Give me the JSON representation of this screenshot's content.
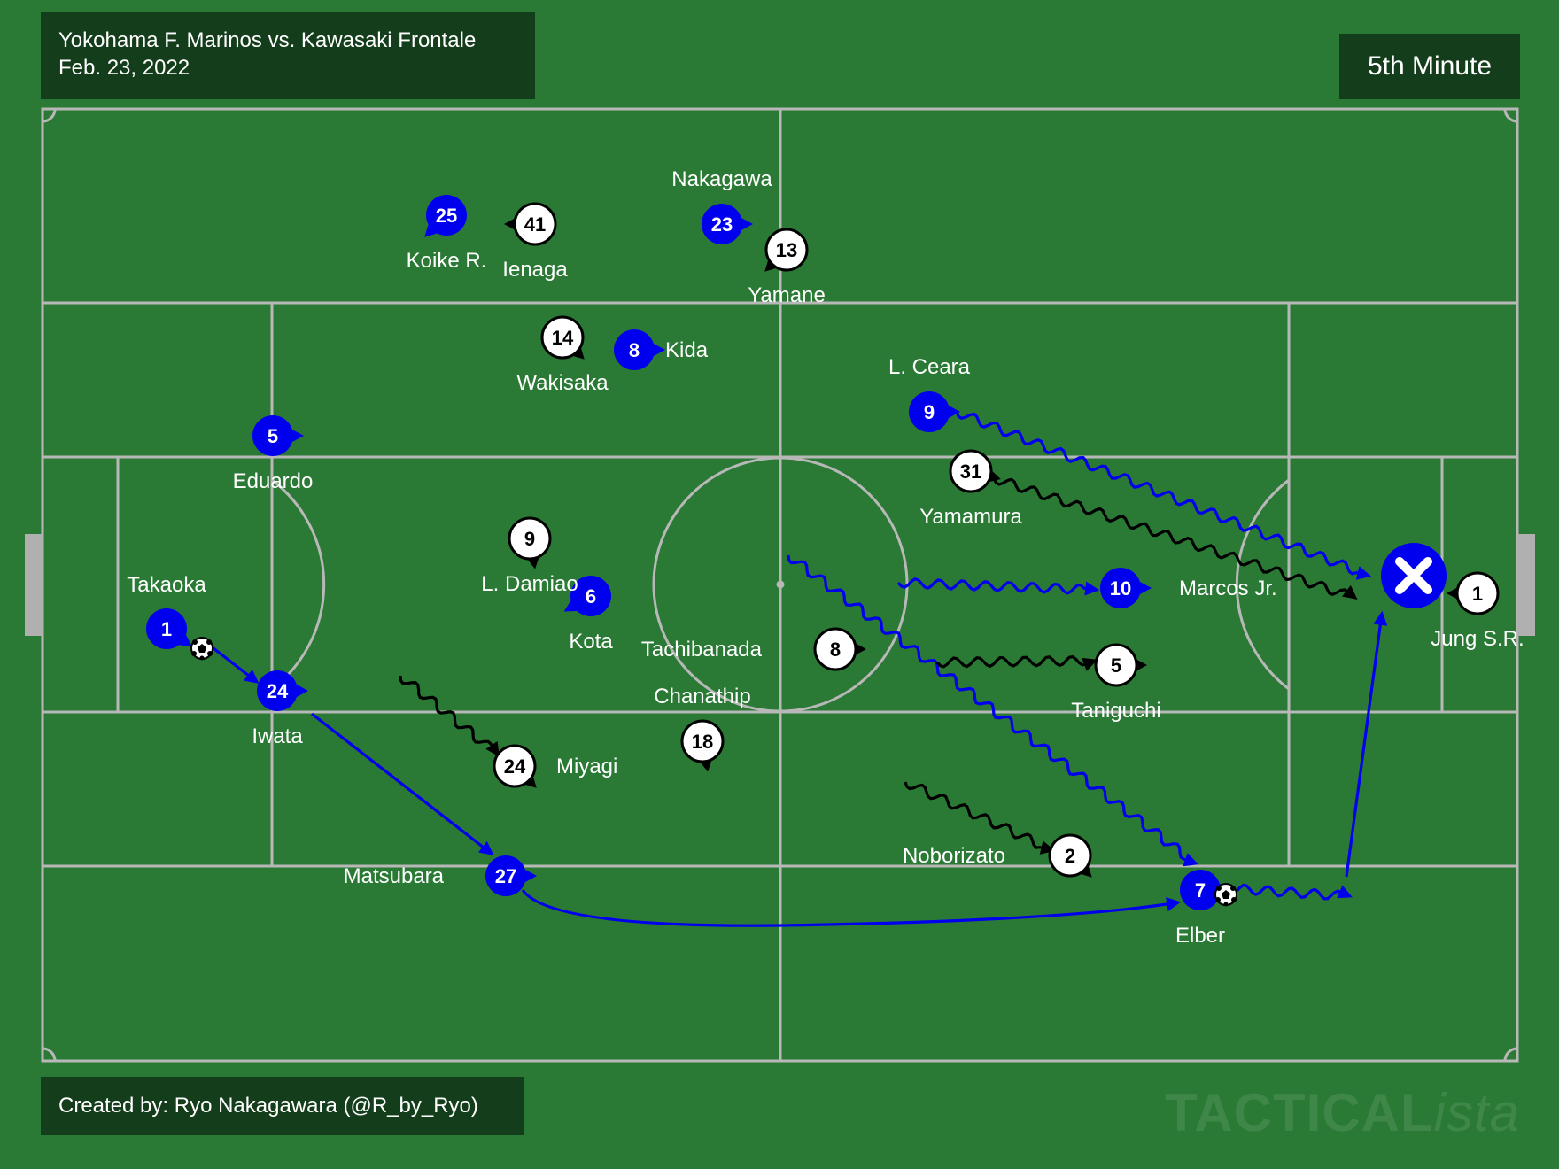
{
  "header": {
    "match_title": "Yokohama F. Marinos vs. Kawasaki Frontale",
    "match_date": "Feb. 23, 2022",
    "minute": "5th Minute"
  },
  "footer": {
    "credit": "Created by: Ryo Nakagawara (@R_by_Ryo)",
    "watermark_main": "TACTICAL",
    "watermark_italic": "ista"
  },
  "colors": {
    "pitch": "#2a7a35",
    "lines": "#b8b8b8",
    "team_home": "#0000ee",
    "team_away": "#ffffff",
    "panel": "#143d1b"
  },
  "teams": {
    "home": "Yokohama F. Marinos",
    "away": "Kawasaki Frontale"
  },
  "players": {
    "home": [
      {
        "num": "1",
        "name": "Takaoka"
      },
      {
        "num": "24",
        "name": "Iwata"
      },
      {
        "num": "5",
        "name": "Eduardo"
      },
      {
        "num": "25",
        "name": "Koike R."
      },
      {
        "num": "27",
        "name": "Matsubara"
      },
      {
        "num": "6",
        "name": "Kota"
      },
      {
        "num": "8",
        "name": "Kida"
      },
      {
        "num": "23",
        "name": "Nakagawa"
      },
      {
        "num": "9",
        "name": "L. Ceara"
      },
      {
        "num": "10",
        "name": "Marcos Jr."
      },
      {
        "num": "7",
        "name": "Elber"
      }
    ],
    "away": [
      {
        "num": "1",
        "name": "Jung S.R."
      },
      {
        "num": "2",
        "name": "Noborizato"
      },
      {
        "num": "5",
        "name": "Taniguchi"
      },
      {
        "num": "31",
        "name": "Yamamura"
      },
      {
        "num": "13",
        "name": "Yamane"
      },
      {
        "num": "8",
        "name": "Tachibanada"
      },
      {
        "num": "18",
        "name": "Chanathip"
      },
      {
        "num": "24",
        "name": "Miyagi"
      },
      {
        "num": "14",
        "name": "Wakisaka"
      },
      {
        "num": "9",
        "name": "L. Damiao"
      },
      {
        "num": "41",
        "name": "Ienaga"
      }
    ]
  },
  "events": {
    "shot_marker": "missed-shot-icon",
    "ball": "soccer-ball-icon"
  }
}
